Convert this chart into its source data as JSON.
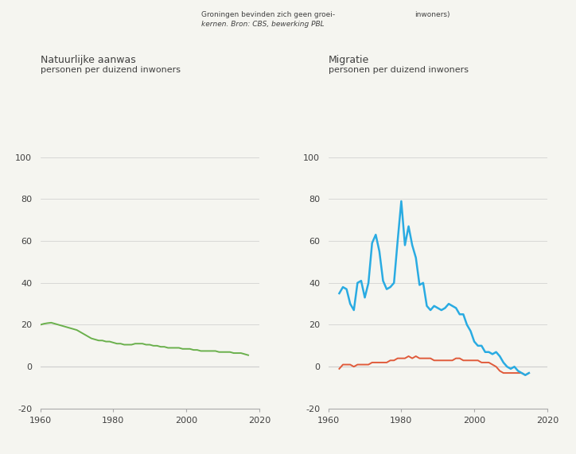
{
  "annotation_text1": "Groningen bevinden zich geen groei-",
  "annotation_text2": "kernen. Bron: CBS, bewerking PBL",
  "annotation_text3": "inwoners)",
  "left_title1": "Natuurlijke aanwas",
  "left_title2": "personen per duizend inwoners",
  "right_title1": "Migratie",
  "right_title2": "personen per duizend inwoners",
  "ylim": [
    -20,
    110
  ],
  "yticks": [
    -20,
    0,
    20,
    40,
    60,
    80,
    100
  ],
  "xlim": [
    1960,
    2020
  ],
  "xticks": [
    1960,
    1980,
    2000,
    2020
  ],
  "bg_color": "#f5f5f0",
  "green_color": "#6ab04c",
  "blue_color": "#29abe2",
  "red_color": "#e05a3a",
  "grid_color": "#cccccc",
  "text_color": "#404040",
  "nat_aanwas_years": [
    1960,
    1961,
    1962,
    1963,
    1964,
    1965,
    1966,
    1967,
    1968,
    1969,
    1970,
    1971,
    1972,
    1973,
    1974,
    1975,
    1976,
    1977,
    1978,
    1979,
    1980,
    1981,
    1982,
    1983,
    1984,
    1985,
    1986,
    1987,
    1988,
    1989,
    1990,
    1991,
    1992,
    1993,
    1994,
    1995,
    1996,
    1997,
    1998,
    1999,
    2000,
    2001,
    2002,
    2003,
    2004,
    2005,
    2006,
    2007,
    2008,
    2009,
    2010,
    2011,
    2012,
    2013,
    2014,
    2015,
    2016,
    2017
  ],
  "nat_aanwas_values": [
    20,
    20.5,
    20.8,
    21,
    20.5,
    20,
    19.5,
    19,
    18.5,
    18,
    17.5,
    16.5,
    15.5,
    14.5,
    13.5,
    13,
    12.5,
    12.5,
    12,
    12,
    11.5,
    11,
    11,
    10.5,
    10.5,
    10.5,
    11,
    11,
    11,
    10.5,
    10.5,
    10,
    10,
    9.5,
    9.5,
    9,
    9,
    9,
    9,
    8.5,
    8.5,
    8.5,
    8,
    8,
    7.5,
    7.5,
    7.5,
    7.5,
    7.5,
    7,
    7,
    7,
    7,
    6.5,
    6.5,
    6.5,
    6,
    5.5
  ],
  "migration_blue_years": [
    1963,
    1964,
    1965,
    1966,
    1967,
    1968,
    1969,
    1970,
    1971,
    1972,
    1973,
    1974,
    1975,
    1976,
    1977,
    1978,
    1979,
    1980,
    1981,
    1982,
    1983,
    1984,
    1985,
    1986,
    1987,
    1988,
    1989,
    1990,
    1991,
    1992,
    1993,
    1994,
    1995,
    1996,
    1997,
    1998,
    1999,
    2000,
    2001,
    2002,
    2003,
    2004,
    2005,
    2006,
    2007,
    2008,
    2009,
    2010,
    2011,
    2012,
    2013,
    2014,
    2015
  ],
  "migration_blue_values": [
    35,
    38,
    37,
    30,
    27,
    40,
    41,
    33,
    40,
    59,
    63,
    55,
    41,
    37,
    38,
    40,
    60,
    79,
    58,
    67,
    58,
    52,
    39,
    40,
    29,
    27,
    29,
    28,
    27,
    28,
    30,
    29,
    28,
    25,
    25,
    20,
    17,
    12,
    10,
    10,
    7,
    7,
    6,
    7,
    5,
    2,
    0,
    -1,
    0,
    -2,
    -3,
    -4,
    -3
  ],
  "migration_red_years": [
    1963,
    1964,
    1965,
    1966,
    1967,
    1968,
    1969,
    1970,
    1971,
    1972,
    1973,
    1974,
    1975,
    1976,
    1977,
    1978,
    1979,
    1980,
    1981,
    1982,
    1983,
    1984,
    1985,
    1986,
    1987,
    1988,
    1989,
    1990,
    1991,
    1992,
    1993,
    1994,
    1995,
    1996,
    1997,
    1998,
    1999,
    2000,
    2001,
    2002,
    2003,
    2004,
    2005,
    2006,
    2007,
    2008,
    2009,
    2010,
    2011,
    2012,
    2013,
    2014,
    2015
  ],
  "migration_red_values": [
    -1,
    1,
    1,
    1,
    0,
    1,
    1,
    1,
    1,
    2,
    2,
    2,
    2,
    2,
    3,
    3,
    4,
    4,
    4,
    5,
    4,
    5,
    4,
    4,
    4,
    4,
    3,
    3,
    3,
    3,
    3,
    3,
    4,
    4,
    3,
    3,
    3,
    3,
    3,
    2,
    2,
    2,
    1,
    0,
    -2,
    -3,
    -3,
    -3,
    -3,
    -3,
    -3,
    -4,
    -3
  ]
}
